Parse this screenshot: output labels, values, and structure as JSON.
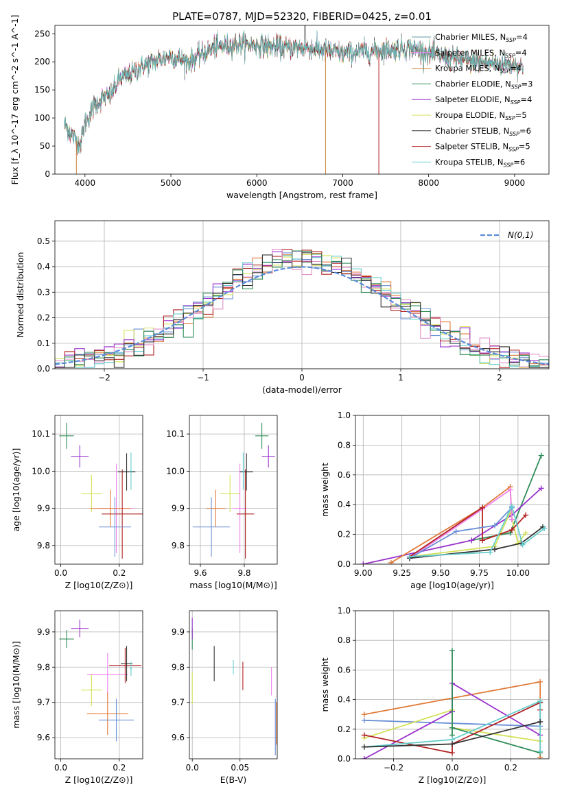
{
  "figure_title": "PLATE=0787, MJD=52320, FIBERID=0425, z=0.01",
  "colors": {
    "Chabrier MILES": "#5f9ea0",
    "Salpeter MILES": "#ee82ee",
    "Kroupa MILES": "#cd853f",
    "Chabrier ELODIE": "#2e8b57",
    "Salpeter ELODIE": "#9932cc",
    "Kroupa ELODIE": "#d4e157",
    "Chabrier STELIB": "#333333",
    "Salpeter STELIB": "#b22222",
    "Kroupa STELIB": "#66cdcd",
    "hist_blue": "#6a8fd6",
    "hist_orange": "#e07b39",
    "hist_pink": "#e091c8",
    "gauss": "#5b8bd8"
  },
  "chart_data": [
    {
      "id": "spectrum",
      "type": "line",
      "title": "PLATE=0787, MJD=52320, FIBERID=0425, z=0.01",
      "xlabel": "wavelength [Angstrom, rest frame]",
      "ylabel": "Flux [f_λ 10^-17 erg cm^-2 s^-1 A^-1]",
      "xlim": [
        3650,
        9400
      ],
      "ylim": [
        0,
        265
      ],
      "xticks": [
        4000,
        5000,
        6000,
        7000,
        8000,
        9000
      ],
      "yticks": [
        0,
        50,
        100,
        150,
        200,
        250
      ],
      "legend_position": "top-right",
      "series": [
        {
          "name": "Chabrier MILES, N_SSP=4"
        },
        {
          "name": "Salpeter MILES, N_SSP=4"
        },
        {
          "name": "Kroupa MILES, N_SSP=4"
        },
        {
          "name": "Chabrier ELODIE, N_SSP=3"
        },
        {
          "name": "Salpeter ELODIE, N_SSP=4"
        },
        {
          "name": "Kroupa ELODIE, N_SSP=5"
        },
        {
          "name": "Chabrier STELIB, N_SSP=6"
        },
        {
          "name": "Salpeter STELIB, N_SSP=5"
        },
        {
          "name": "Kroupa STELIB, N_SSP=6"
        }
      ],
      "continuum": {
        "x": [
          3760,
          3850,
          3900,
          3950,
          4000,
          4100,
          4200,
          4300,
          4400,
          4500,
          4700,
          5000,
          5200,
          5500,
          5800,
          6000,
          6300,
          6600,
          7000,
          7400,
          7800,
          8000,
          8500,
          9000,
          9100
        ],
        "y": [
          90,
          70,
          60,
          55,
          90,
          120,
          135,
          140,
          170,
          175,
          195,
          210,
          200,
          225,
          232,
          230,
          225,
          225,
          215,
          220,
          225,
          215,
          200,
          195,
          190
        ]
      }
    },
    {
      "id": "residuals",
      "type": "line",
      "xlabel": "(data-model)/error",
      "ylabel": "Normed distribution",
      "xlim": [
        -2.5,
        2.5
      ],
      "ylim": [
        0,
        0.58
      ],
      "xticks": [
        -2,
        -1,
        0,
        1,
        2
      ],
      "yticks": [
        0.0,
        0.1,
        0.2,
        0.3,
        0.4,
        0.5
      ],
      "legend_position": "top-right",
      "gauss_label": "N(0,1)"
    },
    {
      "id": "age_vs_z",
      "type": "scatter",
      "xlabel": "Z [log10(Z/Z⊙)]",
      "ylabel": "age [log10(age/yr)]",
      "xlim": [
        -0.02,
        0.28
      ],
      "ylim": [
        9.75,
        10.15
      ],
      "xticks": [
        0.0,
        0.2
      ],
      "yticks": [
        9.8,
        9.9,
        10.0,
        10.1
      ],
      "points": [
        {
          "x": 0.02,
          "y": 10.095,
          "xerr": 0.025,
          "yerr": 0.035,
          "color": "Chabrier ELODIE"
        },
        {
          "x": 0.065,
          "y": 10.04,
          "xerr": 0.03,
          "yerr": 0.03,
          "color": "Salpeter ELODIE"
        },
        {
          "x": 0.105,
          "y": 9.94,
          "xerr": 0.035,
          "yerr": 0.05,
          "color": "Kroupa ELODIE"
        },
        {
          "x": 0.19,
          "y": 9.9,
          "xerr": 0.06,
          "yerr": 0.12,
          "color": "Salpeter MILES"
        },
        {
          "x": 0.17,
          "y": 9.9,
          "xerr": 0.07,
          "yerr": 0.05,
          "color": "hist_orange"
        },
        {
          "x": 0.21,
          "y": 9.885,
          "xerr": 0.07,
          "yerr": 0.12,
          "color": "Salpeter STELIB"
        },
        {
          "x": 0.185,
          "y": 9.85,
          "xerr": 0.055,
          "yerr": 0.08,
          "color": "hist_blue"
        },
        {
          "x": 0.225,
          "y": 9.998,
          "xerr": 0.03,
          "yerr": 0.05,
          "color": "Chabrier STELIB"
        },
        {
          "x": 0.24,
          "y": 10.0,
          "xerr": 0.005,
          "yerr": 0.05,
          "color": "Kroupa STELIB"
        }
      ]
    },
    {
      "id": "age_vs_mass",
      "type": "scatter",
      "xlabel": "mass [log10(M/M⊙)]",
      "ylabel": "",
      "xlim": [
        9.55,
        9.95
      ],
      "ylim": [
        9.75,
        10.15
      ],
      "xticks": [
        9.6,
        9.8
      ],
      "yticks": [
        9.8,
        9.9,
        10.0,
        10.1
      ],
      "points": [
        {
          "x": 9.88,
          "y": 10.095,
          "xerr": 0.03,
          "yerr": 0.035,
          "color": "Chabrier ELODIE"
        },
        {
          "x": 9.91,
          "y": 10.04,
          "xerr": 0.03,
          "yerr": 0.03,
          "color": "Salpeter ELODIE"
        },
        {
          "x": 9.735,
          "y": 9.94,
          "xerr": 0.045,
          "yerr": 0.05,
          "color": "Kroupa ELODIE"
        },
        {
          "x": 9.78,
          "y": 9.9,
          "xerr": 0.03,
          "yerr": 0.12,
          "color": "Salpeter MILES"
        },
        {
          "x": 9.67,
          "y": 9.9,
          "xerr": 0.045,
          "yerr": 0.05,
          "color": "hist_orange"
        },
        {
          "x": 9.805,
          "y": 9.885,
          "xerr": 0.04,
          "yerr": 0.12,
          "color": "Salpeter STELIB"
        },
        {
          "x": 9.65,
          "y": 9.85,
          "xerr": 0.085,
          "yerr": 0.08,
          "color": "hist_blue"
        },
        {
          "x": 9.81,
          "y": 9.998,
          "xerr": 0.03,
          "yerr": 0.05,
          "color": "Chabrier STELIB"
        },
        {
          "x": 9.795,
          "y": 10.0,
          "xerr": 0.005,
          "yerr": 0.05,
          "color": "Kroupa STELIB"
        }
      ]
    },
    {
      "id": "weight_vs_age",
      "type": "line",
      "xlabel": "age [log10(age/yr)]",
      "ylabel": "mass weight",
      "xlim": [
        8.95,
        10.2
      ],
      "ylim": [
        0,
        1.0
      ],
      "xticks": [
        9.0,
        9.25,
        9.5,
        9.75,
        10.0
      ],
      "yticks": [
        0.0,
        0.2,
        0.4,
        0.6,
        0.8,
        1.0
      ],
      "series": [
        {
          "color": "Chabrier ELODIE",
          "x": [
            9.7,
            9.95,
            10.15
          ],
          "y": [
            0.16,
            0.21,
            0.73
          ]
        },
        {
          "color": "Salpeter ELODIE",
          "x": [
            9.0,
            9.7,
            9.96,
            10.15
          ],
          "y": [
            0.0,
            0.16,
            0.33,
            0.51
          ]
        },
        {
          "color": "Kroupa ELODIE",
          "x": [
            9.3,
            9.85,
            9.95,
            10.0,
            10.05
          ],
          "y": [
            0.05,
            0.12,
            0.35,
            0.14,
            0.21
          ]
        },
        {
          "color": "hist_orange",
          "x": [
            9.18,
            9.77,
            9.95,
            9.96
          ],
          "y": [
            0.01,
            0.38,
            0.52,
            0.3
          ]
        },
        {
          "color": "Salpeter MILES",
          "x": [
            9.3,
            9.77,
            9.95,
            9.96
          ],
          "y": [
            0.04,
            0.37,
            0.5,
            0.3
          ]
        },
        {
          "color": "Salpeter STELIB",
          "x": [
            9.3,
            9.77,
            9.77,
            9.96,
            10.05
          ],
          "y": [
            0.05,
            0.38,
            0.16,
            0.23,
            0.33
          ]
        },
        {
          "color": "hist_blue",
          "x": [
            9.3,
            9.6,
            9.85,
            9.96
          ],
          "y": [
            0.04,
            0.22,
            0.26,
            0.38
          ]
        },
        {
          "color": "Chabrier STELIB",
          "x": [
            9.3,
            9.85,
            10.02,
            10.16
          ],
          "y": [
            0.04,
            0.1,
            0.14,
            0.25
          ]
        },
        {
          "color": "Kroupa STELIB",
          "x": [
            9.3,
            9.82,
            9.96,
            10.03,
            10.17
          ],
          "y": [
            0.05,
            0.08,
            0.39,
            0.13,
            0.24
          ]
        }
      ]
    },
    {
      "id": "mass_vs_z",
      "type": "scatter",
      "xlabel": "Z [log10(Z/Z⊙)]",
      "ylabel": "mass [log10(M/M⊙)]",
      "xlim": [
        -0.02,
        0.28
      ],
      "ylim": [
        9.54,
        9.96
      ],
      "xticks": [
        0.0,
        0.2
      ],
      "yticks": [
        9.6,
        9.7,
        9.8,
        9.9
      ],
      "points": [
        {
          "x": 0.02,
          "y": 9.88,
          "xerr": 0.025,
          "yerr": 0.025,
          "color": "Chabrier ELODIE"
        },
        {
          "x": 0.065,
          "y": 9.91,
          "xerr": 0.03,
          "yerr": 0.025,
          "color": "Salpeter ELODIE"
        },
        {
          "x": 0.105,
          "y": 9.735,
          "xerr": 0.035,
          "yerr": 0.045,
          "color": "Kroupa ELODIE"
        },
        {
          "x": 0.16,
          "y": 9.78,
          "xerr": 0.07,
          "yerr": 0.06,
          "color": "Salpeter MILES"
        },
        {
          "x": 0.16,
          "y": 9.668,
          "xerr": 0.07,
          "yerr": 0.06,
          "color": "hist_orange"
        },
        {
          "x": 0.22,
          "y": 9.805,
          "xerr": 0.055,
          "yerr": 0.05,
          "color": "Salpeter STELIB"
        },
        {
          "x": 0.19,
          "y": 9.65,
          "xerr": 0.06,
          "yerr": 0.06,
          "color": "hist_blue"
        },
        {
          "x": 0.225,
          "y": 9.81,
          "xerr": 0.02,
          "yerr": 0.05,
          "color": "Chabrier STELIB"
        },
        {
          "x": 0.24,
          "y": 9.795,
          "xerr": 0.003,
          "yerr": 0.02,
          "color": "Kroupa STELIB"
        }
      ]
    },
    {
      "id": "mass_vs_ebv",
      "type": "scatter",
      "xlabel": "E(B-V)",
      "ylabel": "",
      "xlim": [
        -0.003,
        0.089
      ],
      "ylim": [
        9.54,
        9.96
      ],
      "xticks": [
        0.0,
        0.05
      ],
      "yticks": [
        9.6,
        9.7,
        9.8,
        9.9
      ],
      "points": [
        {
          "x": 0.0,
          "y": 9.88,
          "xerr": 0,
          "yerr": 0.03,
          "color": "Chabrier ELODIE"
        },
        {
          "x": 0.0,
          "y": 9.91,
          "xerr": 0,
          "yerr": 0.03,
          "color": "Salpeter ELODIE"
        },
        {
          "x": 0.0,
          "y": 9.74,
          "xerr": 0,
          "yerr": 0.045,
          "color": "Kroupa ELODIE"
        },
        {
          "x": 0.023,
          "y": 9.81,
          "xerr": 0,
          "yerr": 0.05,
          "color": "Chabrier STELIB"
        },
        {
          "x": 0.043,
          "y": 9.8,
          "xerr": 0,
          "yerr": 0.02,
          "color": "Kroupa STELIB"
        },
        {
          "x": 0.053,
          "y": 9.775,
          "xerr": 0,
          "yerr": 0.04,
          "color": "Salpeter STELIB"
        },
        {
          "x": 0.083,
          "y": 9.76,
          "xerr": 0,
          "yerr": 0.04,
          "color": "Salpeter MILES"
        },
        {
          "x": 0.087,
          "y": 9.63,
          "xerr": 0,
          "yerr": 0.08,
          "color": "hist_blue"
        },
        {
          "x": 0.088,
          "y": 9.64,
          "xerr": 0,
          "yerr": 0.06,
          "color": "hist_orange"
        }
      ]
    },
    {
      "id": "weight_vs_z",
      "type": "line",
      "xlabel": "Z [log10(Z/Z⊙)]",
      "ylabel": "mass weight",
      "xlim": [
        -0.33,
        0.33
      ],
      "ylim": [
        0,
        1.0
      ],
      "xticks": [
        -0.2,
        0.0,
        0.2
      ],
      "yticks": [
        0.0,
        0.2,
        0.4,
        0.6,
        0.8,
        1.0
      ],
      "series": [
        {
          "color": "hist_orange",
          "x": [
            -0.3,
            0.3,
            0.3
          ],
          "y": [
            0.3,
            0.52,
            0.01
          ]
        },
        {
          "color": "hist_blue",
          "x": [
            -0.3,
            0.3,
            0.3
          ],
          "y": [
            0.26,
            0.22,
            0.38
          ]
        },
        {
          "color": "Kroupa ELODIE",
          "x": [
            -0.3,
            0.0,
            0.0,
            0.3
          ],
          "y": [
            0.14,
            0.33,
            0.21,
            0.12
          ]
        },
        {
          "color": "Salpeter ELODIE",
          "x": [
            -0.3,
            0.0,
            0.0,
            0.3
          ],
          "y": [
            0.0,
            0.32,
            0.51,
            0.16
          ]
        },
        {
          "color": "Chabrier ELODIE",
          "x": [
            0.0,
            0.0,
            0.0,
            0.3
          ],
          "y": [
            0.73,
            0.16,
            0.21,
            0.04
          ]
        },
        {
          "color": "Salpeter STELIB",
          "x": [
            -0.3,
            0.0,
            0.0,
            0.3,
            0.3
          ],
          "y": [
            0.16,
            0.04,
            0.1,
            0.38,
            0.33
          ]
        },
        {
          "color": "Kroupa STELIB",
          "x": [
            -0.3,
            0.0,
            0.3,
            0.3
          ],
          "y": [
            0.08,
            0.13,
            0.39,
            0.05
          ]
        },
        {
          "color": "Chabrier STELIB",
          "x": [
            -0.3,
            0.0,
            0.3
          ],
          "y": [
            0.08,
            0.1,
            0.25
          ]
        }
      ]
    }
  ]
}
